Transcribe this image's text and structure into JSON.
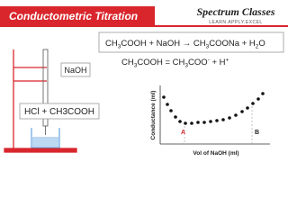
{
  "header": {
    "title": "Conductometric Titration",
    "logo": {
      "name": "Spectrum Classes",
      "tagline": "LEARN.APPLY.EXCEL"
    }
  },
  "equations": [
    {
      "parts": [
        "CH",
        "3",
        "COOH + NaOH → CH",
        "3",
        "COONa + H",
        "2",
        "O"
      ]
    },
    {
      "parts": [
        "CH",
        "3",
        "COOH = CH",
        "3",
        "COO",
        "-",
        " + H",
        "+"
      ]
    }
  ],
  "apparatus": {
    "burette_label": "NaOH",
    "beaker_label": "HCl + CH3COOH"
  },
  "graph": {
    "y_label": "Conductance (ml)",
    "x_label": "Vol of NaOH (ml)",
    "points": [
      "A",
      "B"
    ]
  }
}
